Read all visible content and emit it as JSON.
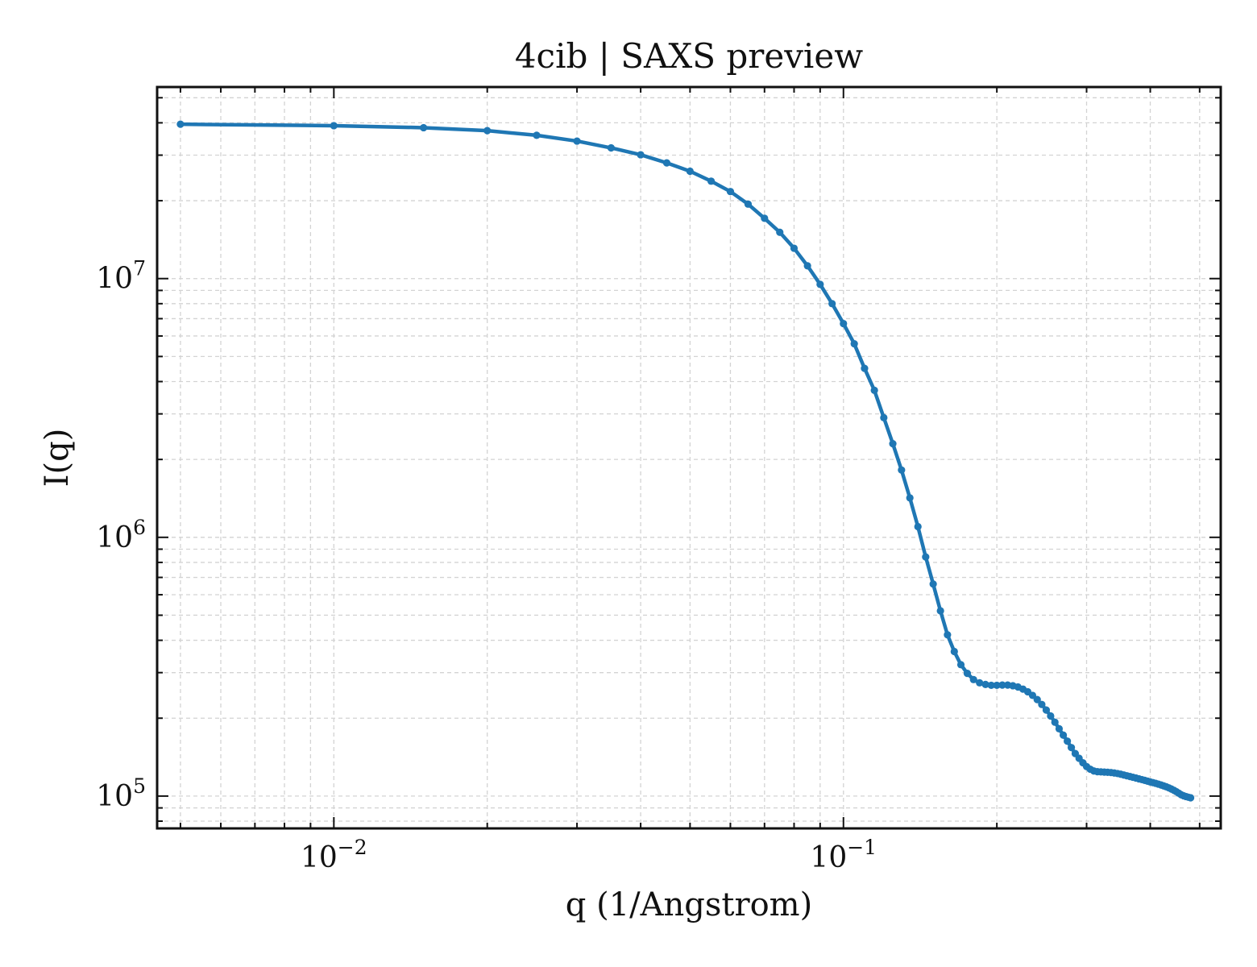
{
  "chart_data": {
    "type": "line",
    "title": "4cib | SAXS preview",
    "xlabel": "q (1/Angstrom)",
    "ylabel": "I(q)",
    "xscale": "log",
    "yscale": "log",
    "xlim": [
      0.0045,
      0.55
    ],
    "ylim": [
      75000,
      55000000
    ],
    "grid": true,
    "x_ticks": [
      {
        "value": 0.01,
        "base": "10",
        "exp": "−2"
      },
      {
        "value": 0.1,
        "base": "10",
        "exp": "−1"
      }
    ],
    "y_ticks": [
      {
        "value": 100000,
        "base": "10",
        "exp": "5"
      },
      {
        "value": 1000000,
        "base": "10",
        "exp": "6"
      },
      {
        "value": 10000000,
        "base": "10",
        "exp": "7"
      }
    ],
    "colors": {
      "series": "#1f77b4",
      "grid": "#d3d3d3",
      "axis": "#111111"
    },
    "series": [
      {
        "points": [
          [
            0.005,
            39500000
          ],
          [
            0.01,
            39000000
          ],
          [
            0.015,
            38300000
          ],
          [
            0.02,
            37300000
          ],
          [
            0.025,
            35800000
          ],
          [
            0.03,
            34000000
          ],
          [
            0.035,
            32000000
          ],
          [
            0.04,
            30100000
          ],
          [
            0.045,
            28000000
          ],
          [
            0.05,
            26000000
          ],
          [
            0.055,
            23800000
          ],
          [
            0.06,
            21700000
          ],
          [
            0.065,
            19400000
          ],
          [
            0.07,
            17100000
          ],
          [
            0.075,
            15100000
          ],
          [
            0.08,
            13100000
          ],
          [
            0.085,
            11200000
          ],
          [
            0.09,
            9500000
          ],
          [
            0.095,
            8000000
          ],
          [
            0.1,
            6700000
          ],
          [
            0.105,
            5600000
          ],
          [
            0.11,
            4500000
          ],
          [
            0.115,
            3700000
          ],
          [
            0.12,
            2900000
          ],
          [
            0.125,
            2300000
          ],
          [
            0.13,
            1820000
          ],
          [
            0.135,
            1420000
          ],
          [
            0.14,
            1100000
          ],
          [
            0.145,
            840000
          ],
          [
            0.15,
            660000
          ],
          [
            0.155,
            520000
          ],
          [
            0.16,
            420000
          ],
          [
            0.165,
            362000
          ],
          [
            0.17,
            322000
          ],
          [
            0.175,
            298000
          ],
          [
            0.18,
            282000
          ],
          [
            0.185,
            274000
          ],
          [
            0.19,
            270000
          ],
          [
            0.195,
            268000
          ],
          [
            0.2,
            268000
          ],
          [
            0.205,
            268500
          ],
          [
            0.21,
            268500
          ],
          [
            0.215,
            267000
          ],
          [
            0.22,
            264000
          ],
          [
            0.225,
            259000
          ],
          [
            0.23,
            253000
          ],
          [
            0.235,
            245000
          ],
          [
            0.24,
            236000
          ],
          [
            0.245,
            226000
          ],
          [
            0.25,
            215000
          ],
          [
            0.255,
            204000
          ],
          [
            0.26,
            193000
          ],
          [
            0.265,
            182000
          ],
          [
            0.27,
            172000
          ],
          [
            0.275,
            163000
          ],
          [
            0.28,
            154000
          ],
          [
            0.285,
            146000
          ],
          [
            0.29,
            140000
          ],
          [
            0.295,
            134500
          ],
          [
            0.3,
            130000
          ],
          [
            0.305,
            127000
          ],
          [
            0.31,
            125000
          ],
          [
            0.315,
            124200
          ],
          [
            0.32,
            124000
          ],
          [
            0.325,
            123800
          ],
          [
            0.33,
            123600
          ],
          [
            0.335,
            123300
          ],
          [
            0.34,
            122800
          ],
          [
            0.345,
            122200
          ],
          [
            0.35,
            121500
          ],
          [
            0.355,
            120600
          ],
          [
            0.36,
            119800
          ],
          [
            0.365,
            119000
          ],
          [
            0.37,
            118200
          ],
          [
            0.375,
            117400
          ],
          [
            0.38,
            116600
          ],
          [
            0.385,
            115800
          ],
          [
            0.39,
            115000
          ],
          [
            0.395,
            114200
          ],
          [
            0.4,
            113400
          ],
          [
            0.405,
            112700
          ],
          [
            0.41,
            112000
          ],
          [
            0.415,
            111200
          ],
          [
            0.42,
            110400
          ],
          [
            0.425,
            109500
          ],
          [
            0.43,
            108600
          ],
          [
            0.435,
            107600
          ],
          [
            0.44,
            106500
          ],
          [
            0.445,
            105300
          ],
          [
            0.45,
            104000
          ],
          [
            0.455,
            102600
          ],
          [
            0.46,
            101200
          ],
          [
            0.465,
            100300
          ],
          [
            0.47,
            99600
          ],
          [
            0.475,
            99000
          ],
          [
            0.48,
            98500
          ]
        ]
      }
    ]
  }
}
